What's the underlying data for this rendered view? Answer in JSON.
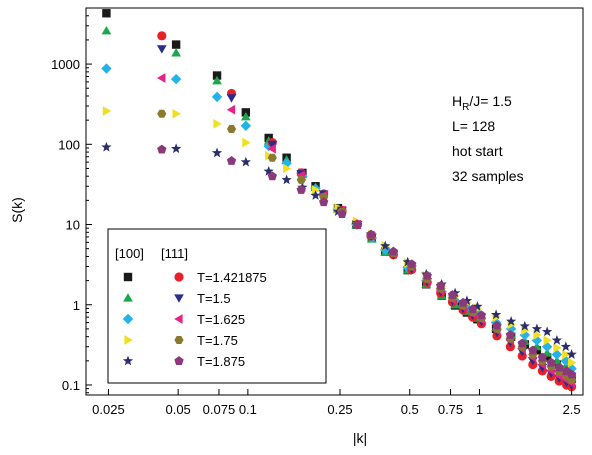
{
  "chart_data": {
    "type": "scatter",
    "title": "",
    "xlabel": "|k|",
    "ylabel": "S(k)",
    "xscale": "log",
    "yscale": "log",
    "xlim": [
      0.02,
      2.8
    ],
    "ylim": [
      0.075,
      5000
    ],
    "x_ticks": [
      0.025,
      0.05,
      0.075,
      0.1,
      0.25,
      0.5,
      0.75,
      1,
      2.5
    ],
    "x_tick_labels": [
      "0.025",
      "0.05",
      "0.075",
      "0.1",
      "0.25",
      "0.5",
      "0.75",
      "1",
      "2.5"
    ],
    "y_ticks": [
      0.1,
      1,
      10,
      100,
      1000
    ],
    "y_tick_labels": [
      "0.1",
      "1",
      "10",
      "100",
      "1000"
    ],
    "grid": false,
    "annotation_lines": [
      "H",
      "R",
      "/J= 1.5",
      "L= 128",
      "hot start",
      "32 samples"
    ],
    "legend": {
      "placement": "bottom-left",
      "col_headers": [
        "[100]",
        "[111]"
      ],
      "rows": [
        {
          "label": "T=1.421875",
          "color_100": "#1a1a1a",
          "marker_100": "square",
          "color_111": "#e8202a",
          "marker_111": "circle"
        },
        {
          "label": "T=1.5",
          "color_100": "#1aa84a",
          "marker_100": "triangle-up",
          "color_111": "#2a2e8a",
          "marker_111": "triangle-down"
        },
        {
          "label": "T=1.625",
          "color_100": "#22b4e8",
          "marker_100": "diamond",
          "color_111": "#e8208a",
          "marker_111": "triangle-left"
        },
        {
          "label": "T=1.75",
          "color_100": "#f0e020",
          "marker_100": "triangle-right",
          "color_111": "#8a7a30",
          "marker_111": "hexagon"
        },
        {
          "label": "T=1.875",
          "color_100": "#2a2e6a",
          "marker_100": "star",
          "color_111": "#8a3a7a",
          "marker_111": "pentagon"
        }
      ]
    },
    "series": [
      {
        "name": "[100] T=1.421875",
        "marker": "square",
        "color": "#1a1a1a",
        "x": [
          0.0245,
          0.049,
          0.0736,
          0.098,
          0.123,
          0.147,
          0.172,
          0.196,
          0.245,
          0.294,
          0.343,
          0.392,
          0.49,
          0.589,
          0.687,
          0.785,
          0.883,
          0.98,
          1.18,
          1.37,
          1.57,
          1.77,
          1.96,
          2.16,
          2.36,
          2.5
        ],
        "y": [
          4300,
          1750,
          720,
          250,
          120,
          68,
          44,
          30,
          16,
          10,
          6.8,
          4.6,
          2.7,
          1.8,
          1.3,
          0.98,
          0.8,
          0.66,
          0.5,
          0.4,
          0.32,
          0.27,
          0.22,
          0.18,
          0.15,
          0.12
        ]
      },
      {
        "name": "[100] T=1.5",
        "marker": "triangle-up",
        "color": "#1aa84a",
        "x": [
          0.0245,
          0.049,
          0.0736,
          0.098,
          0.123,
          0.147,
          0.172,
          0.196,
          0.245,
          0.294,
          0.343,
          0.392,
          0.49,
          0.589,
          0.687,
          0.785,
          0.883,
          0.98,
          1.18,
          1.37,
          1.57,
          1.77,
          1.96,
          2.16,
          2.36,
          2.5
        ],
        "y": [
          2600,
          1380,
          620,
          220,
          110,
          64,
          42,
          29,
          15.5,
          9.8,
          6.6,
          4.5,
          2.7,
          1.8,
          1.3,
          1.0,
          0.82,
          0.68,
          0.52,
          0.42,
          0.35,
          0.3,
          0.25,
          0.2,
          0.17,
          0.14
        ]
      },
      {
        "name": "[100] T=1.625",
        "marker": "diamond",
        "color": "#22b4e8",
        "x": [
          0.0245,
          0.049,
          0.0736,
          0.098,
          0.123,
          0.147,
          0.172,
          0.196,
          0.245,
          0.294,
          0.343,
          0.392,
          0.49,
          0.589,
          0.687,
          0.785,
          0.883,
          0.98,
          1.18,
          1.37,
          1.57,
          1.77,
          1.96,
          2.16,
          2.36,
          2.5
        ],
        "y": [
          880,
          650,
          390,
          170,
          95,
          58,
          40,
          28,
          15.5,
          10,
          6.8,
          4.8,
          2.9,
          2.0,
          1.45,
          1.12,
          0.92,
          0.78,
          0.6,
          0.5,
          0.42,
          0.36,
          0.3,
          0.24,
          0.2,
          0.16
        ]
      },
      {
        "name": "[100] T=1.75",
        "marker": "triangle-right",
        "color": "#f0e020",
        "x": [
          0.0245,
          0.049,
          0.0736,
          0.098,
          0.123,
          0.147,
          0.172,
          0.196,
          0.245,
          0.294,
          0.343,
          0.392,
          0.49,
          0.589,
          0.687,
          0.785,
          0.883,
          0.98,
          1.18,
          1.37,
          1.57,
          1.77,
          1.96,
          2.16,
          2.36,
          2.5
        ],
        "y": [
          260,
          240,
          180,
          105,
          72,
          50,
          36,
          27,
          16,
          11,
          7.5,
          5.4,
          3.3,
          2.3,
          1.7,
          1.3,
          1.05,
          0.9,
          0.7,
          0.57,
          0.48,
          0.42,
          0.36,
          0.29,
          0.24,
          0.19
        ]
      },
      {
        "name": "[100] T=1.875",
        "marker": "star",
        "color": "#2a2e6a",
        "x": [
          0.0245,
          0.049,
          0.0736,
          0.098,
          0.123,
          0.147,
          0.172,
          0.196,
          0.245,
          0.294,
          0.343,
          0.392,
          0.49,
          0.589,
          0.687,
          0.785,
          0.883,
          0.98,
          1.18,
          1.37,
          1.57,
          1.77,
          1.96,
          2.16,
          2.36,
          2.5
        ],
        "y": [
          92,
          88,
          78,
          60,
          46,
          36,
          29,
          23,
          14.5,
          10,
          7.3,
          5.4,
          3.4,
          2.4,
          1.8,
          1.4,
          1.12,
          0.95,
          0.75,
          0.62,
          0.54,
          0.5,
          0.46,
          0.36,
          0.3,
          0.24
        ]
      },
      {
        "name": "[111] T=1.421875",
        "marker": "circle",
        "color": "#e8202a",
        "x": [
          0.0425,
          0.085,
          0.1275,
          0.17,
          0.2125,
          0.255,
          0.2975,
          0.34,
          0.425,
          0.51,
          0.595,
          0.68,
          0.765,
          0.85,
          0.935,
          1.02,
          1.19,
          1.36,
          1.53,
          1.7,
          1.87,
          2.04,
          2.21,
          2.38,
          2.5
        ],
        "y": [
          2250,
          430,
          105,
          44,
          24,
          15,
          10,
          7.2,
          4.2,
          2.75,
          1.9,
          1.4,
          1.08,
          0.86,
          0.7,
          0.58,
          0.41,
          0.3,
          0.23,
          0.18,
          0.15,
          0.128,
          0.112,
          0.1,
          0.095
        ]
      },
      {
        "name": "[111] T=1.5",
        "marker": "triangle-down",
        "color": "#2a2e8a",
        "x": [
          0.0425,
          0.085,
          0.1275,
          0.17,
          0.2125,
          0.255,
          0.2975,
          0.34,
          0.425,
          0.51,
          0.595,
          0.68,
          0.765,
          0.85,
          0.935,
          1.02,
          1.19,
          1.36,
          1.53,
          1.7,
          1.87,
          2.04,
          2.21,
          2.38,
          2.5
        ],
        "y": [
          1550,
          380,
          100,
          43,
          24,
          15,
          10,
          7.2,
          4.2,
          2.8,
          1.95,
          1.45,
          1.12,
          0.9,
          0.74,
          0.62,
          0.45,
          0.34,
          0.26,
          0.2,
          0.165,
          0.14,
          0.122,
          0.108,
          0.1
        ]
      },
      {
        "name": "[111] T=1.625",
        "marker": "triangle-left",
        "color": "#e8208a",
        "x": [
          0.0425,
          0.085,
          0.1275,
          0.17,
          0.2125,
          0.255,
          0.2975,
          0.34,
          0.425,
          0.51,
          0.595,
          0.68,
          0.765,
          0.85,
          0.935,
          1.02,
          1.19,
          1.36,
          1.53,
          1.7,
          1.87,
          2.04,
          2.21,
          2.38,
          2.5
        ],
        "y": [
          670,
          270,
          88,
          41,
          23,
          15,
          10,
          7.3,
          4.3,
          2.9,
          2.0,
          1.5,
          1.15,
          0.93,
          0.77,
          0.65,
          0.48,
          0.36,
          0.28,
          0.22,
          0.18,
          0.15,
          0.13,
          0.115,
          0.105
        ]
      },
      {
        "name": "[111] T=1.75",
        "marker": "hexagon",
        "color": "#8a7a30",
        "x": [
          0.0425,
          0.085,
          0.1275,
          0.17,
          0.2125,
          0.255,
          0.2975,
          0.34,
          0.425,
          0.51,
          0.595,
          0.68,
          0.765,
          0.85,
          0.935,
          1.02,
          1.19,
          1.36,
          1.53,
          1.7,
          1.87,
          2.04,
          2.21,
          2.38,
          2.5
        ],
        "y": [
          240,
          155,
          68,
          36,
          22,
          14.5,
          10,
          7.4,
          4.4,
          3.0,
          2.1,
          1.6,
          1.22,
          0.98,
          0.81,
          0.68,
          0.5,
          0.38,
          0.3,
          0.24,
          0.2,
          0.17,
          0.145,
          0.128,
          0.115
        ]
      },
      {
        "name": "[111] T=1.875",
        "marker": "pentagon",
        "color": "#8a3a7a",
        "x": [
          0.0425,
          0.085,
          0.1275,
          0.17,
          0.2125,
          0.255,
          0.2975,
          0.34,
          0.425,
          0.51,
          0.595,
          0.68,
          0.765,
          0.85,
          0.935,
          1.02,
          1.19,
          1.36,
          1.53,
          1.7,
          1.87,
          2.04,
          2.21,
          2.38,
          2.5
        ],
        "y": [
          86,
          62,
          40,
          27,
          19,
          13.5,
          10,
          7.5,
          4.6,
          3.2,
          2.3,
          1.72,
          1.32,
          1.06,
          0.88,
          0.74,
          0.55,
          0.42,
          0.33,
          0.27,
          0.22,
          0.19,
          0.165,
          0.148,
          0.135
        ]
      }
    ]
  }
}
